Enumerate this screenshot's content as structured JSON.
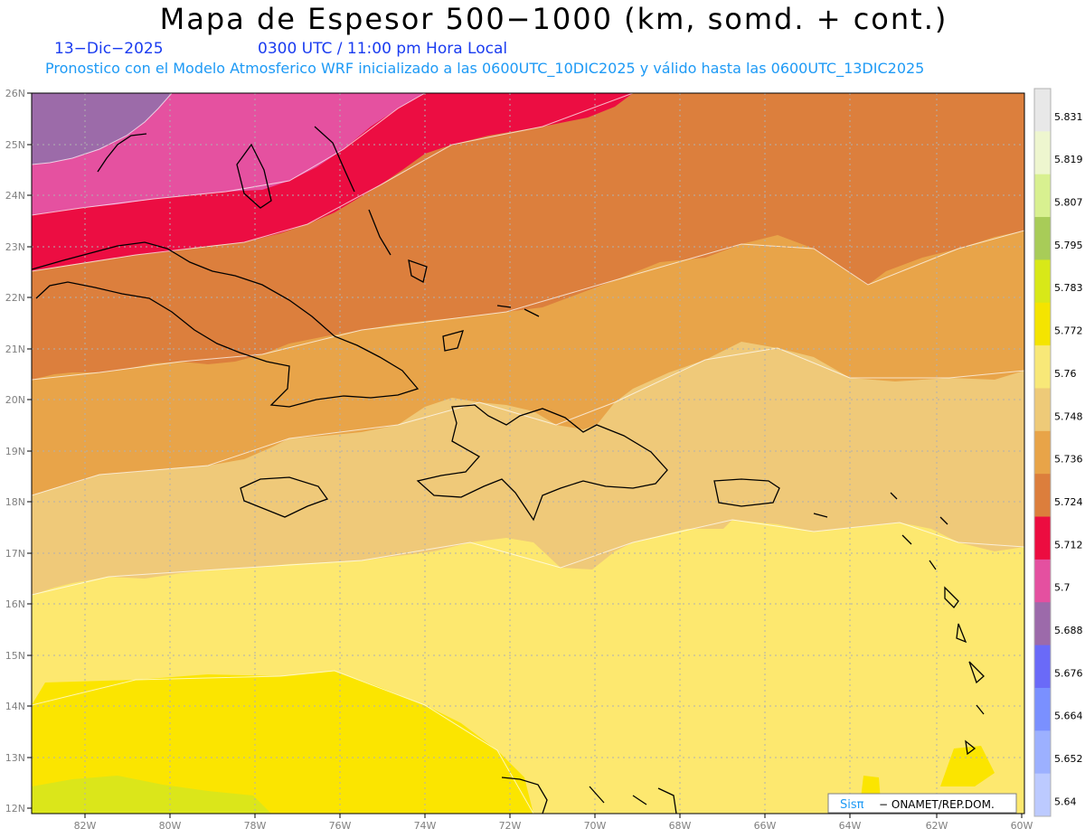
{
  "header": {
    "title": "Mapa de Espesor 500−1000 (km, somd. + cont.)",
    "date": "13−Dic−2025",
    "time": "0300 UTC / 11:00 pm Hora Local",
    "subtitle": "Pronostico con el Modelo Atmosferico WRF inicializado a las 0600UTC_10DIC2025 y válido hasta las  0600UTC_13DIC2025"
  },
  "map": {
    "lat_labels": [
      "26N",
      "25N",
      "24N",
      "23N",
      "22N",
      "21N",
      "20N",
      "19N",
      "18N",
      "17N",
      "16N",
      "15N",
      "14N",
      "13N",
      "12N"
    ],
    "lon_labels": [
      "82W",
      "80W",
      "78W",
      "76W",
      "74W",
      "72W",
      "70W",
      "68W",
      "66W",
      "64W",
      "62W",
      "60W"
    ]
  },
  "colorbar": {
    "labels": [
      "5.831",
      "5.819",
      "5.807",
      "5.795",
      "5.783",
      "5.772",
      "5.76",
      "5.748",
      "5.736",
      "5.724",
      "5.712",
      "5.7",
      "5.688",
      "5.676",
      "5.664",
      "5.652",
      "5.64"
    ],
    "colors": [
      "#e8e8e8",
      "#eef6cf",
      "#d8f090",
      "#a8cc58",
      "#d8e818",
      "#f4e400",
      "#f8e878",
      "#eeca78",
      "#e8a448",
      "#dc7e3c",
      "#ec0c40",
      "#e450a0",
      "#9c6aaa",
      "#6a6af8",
      "#7a90ff",
      "#9cb0ff",
      "#bccaff"
    ]
  },
  "footer": {
    "brand": "Sisπ",
    "org": "− ONAMET/REP.DOM."
  }
}
